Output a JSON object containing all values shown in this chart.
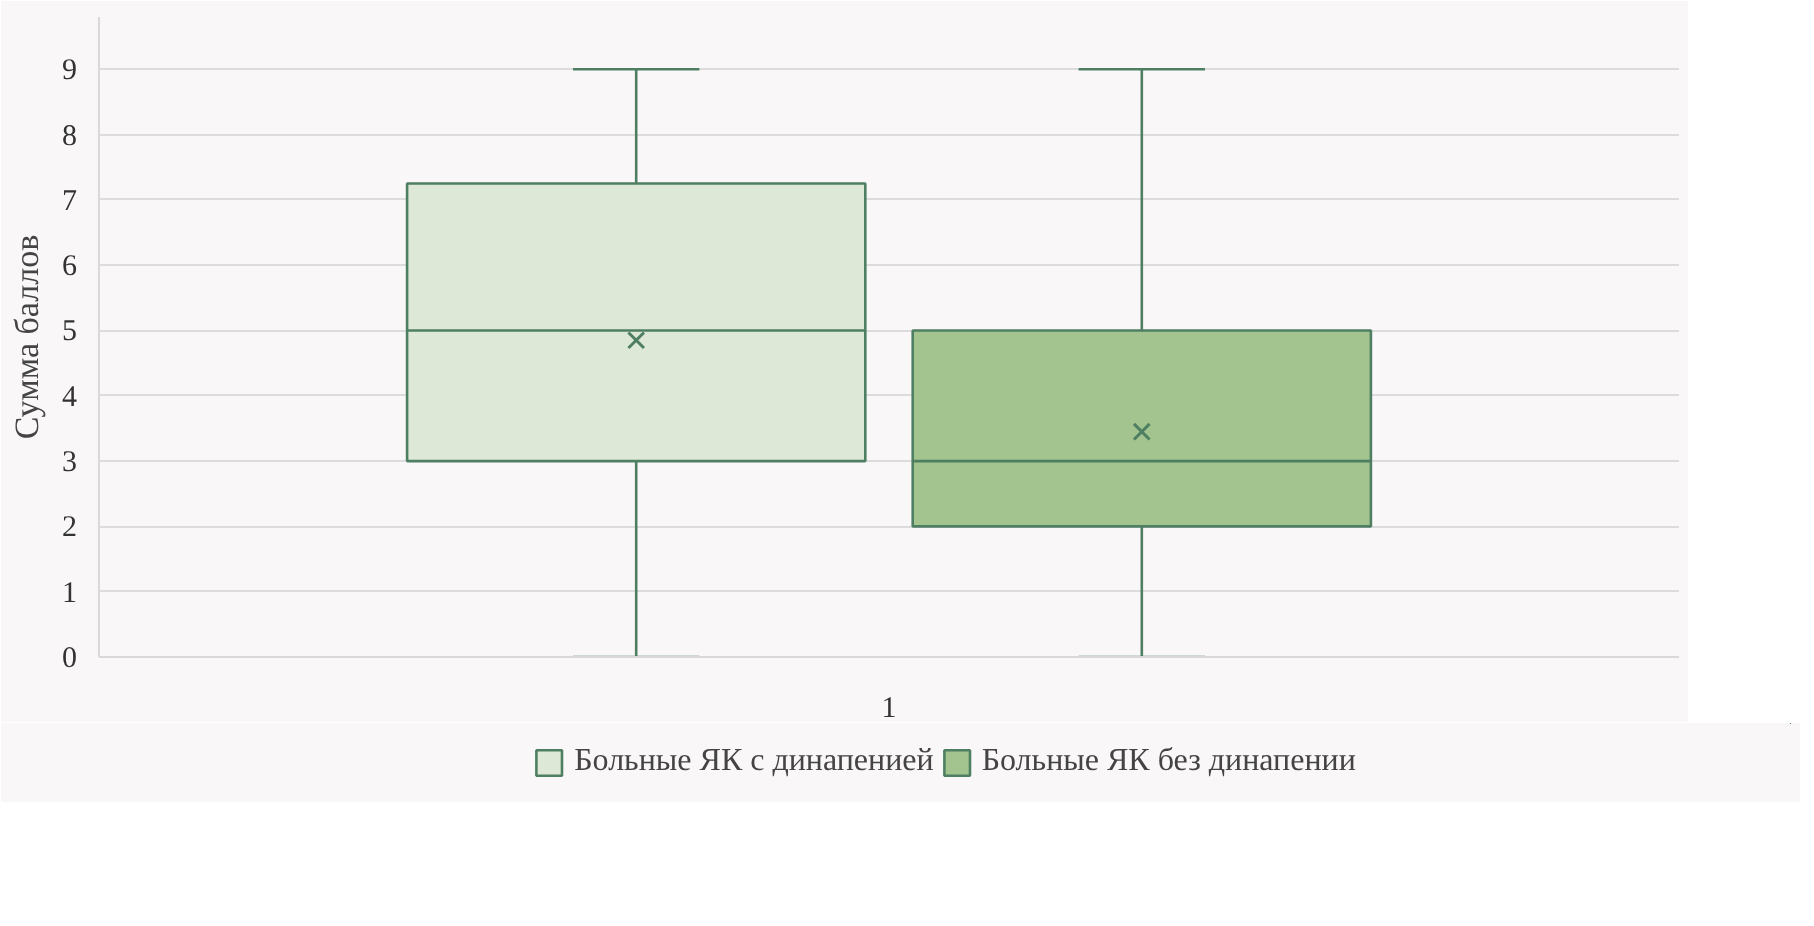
{
  "chart_data": {
    "type": "box",
    "ylabel": "Сумма баллов",
    "categories": [
      "1"
    ],
    "ylim": [
      0,
      9.8
    ],
    "yticks": [
      0,
      1,
      2,
      3,
      4,
      5,
      6,
      7,
      8,
      9
    ],
    "grid": "y",
    "legend": "bottom",
    "marker": "cross",
    "series": [
      {
        "name": "Больные ЯК с динапенией",
        "color": "#dee8d7",
        "boxes": [
          {
            "low": 0,
            "q1": 3,
            "median": 5,
            "q3": 7.25,
            "high": 9,
            "mean": 4.85
          }
        ]
      },
      {
        "name": "Больные ЯК без динапении",
        "color": "#a3c48e",
        "boxes": [
          {
            "low": 0,
            "q1": 2,
            "median": 3,
            "q3": 5,
            "high": 9,
            "mean": 3.45
          }
        ]
      }
    ]
  }
}
